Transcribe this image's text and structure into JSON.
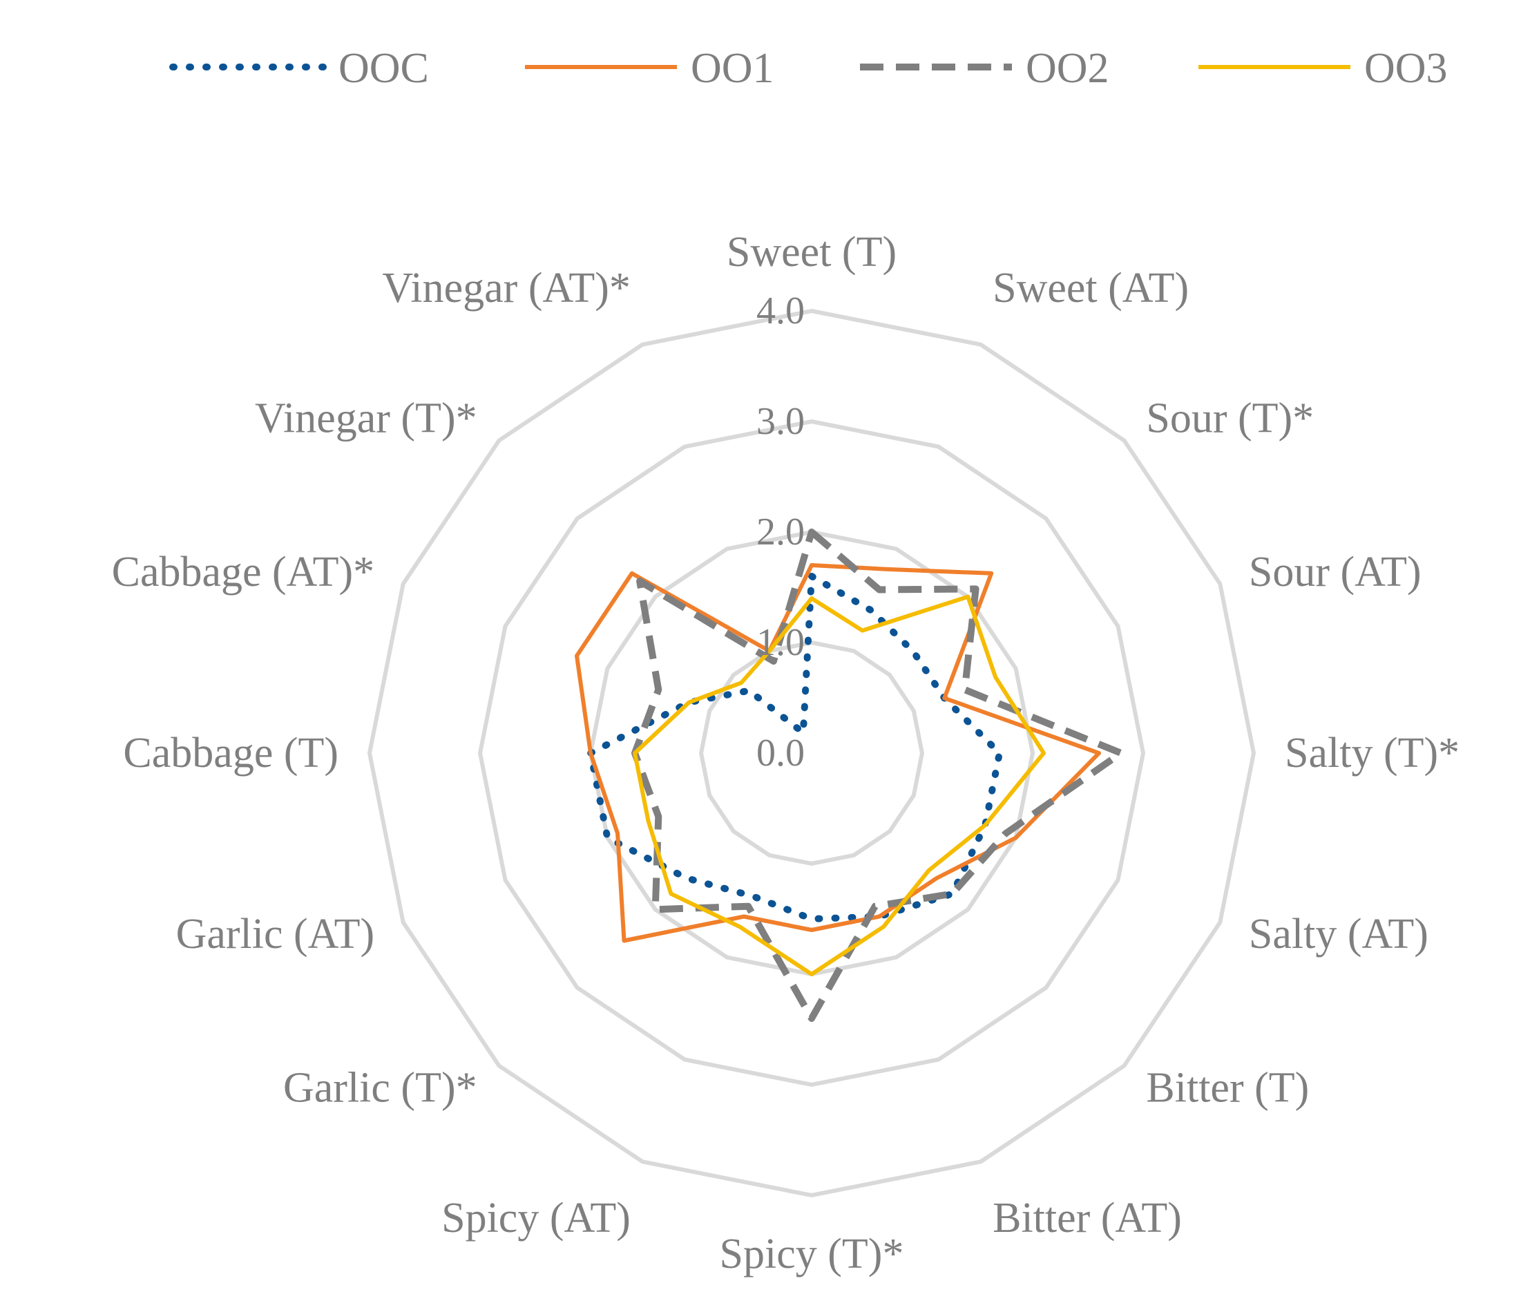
{
  "chart_data": {
    "type": "radar",
    "categories": [
      "Sweet (T)",
      "Sweet (AT)",
      "Sour (T)*",
      "Sour (AT)",
      "Salty (T)*",
      "Salty (AT)",
      "Bitter (T)",
      "Bitter (AT)",
      "Spicy (T)*",
      "Spicy (AT)",
      "Garlic (T)*",
      "Garlic (AT)",
      "Cabbage (T)",
      "Cabbage (AT)*",
      "Vinegar (T)*",
      "Vinegar (AT)*"
    ],
    "rlim": [
      0,
      4
    ],
    "ticks": [
      "0.0",
      "1.0",
      "2.0",
      "3.0",
      "4.0"
    ],
    "grid": true,
    "legend_position": "top",
    "series": [
      {
        "name": "OOC",
        "color": "#0b5394",
        "dash": "dotted",
        "values": [
          1.6,
          1.4,
          1.3,
          1.3,
          1.7,
          1.7,
          1.8,
          1.6,
          1.5,
          1.4,
          1.6,
          2.0,
          2.0,
          1.2,
          0.8,
          0.2
        ]
      },
      {
        "name": "OO1",
        "color": "#f07f2b",
        "dash": "solid",
        "values": [
          1.7,
          1.8,
          2.3,
          1.3,
          2.6,
          2.0,
          1.6,
          1.6,
          1.6,
          1.6,
          2.4,
          1.9,
          2.0,
          2.3,
          2.3,
          1.0
        ]
      },
      {
        "name": "OO2",
        "color": "#7f7f7f",
        "dash": "dashed",
        "values": [
          2.0,
          1.6,
          2.1,
          1.5,
          2.8,
          1.9,
          1.8,
          1.5,
          2.4,
          1.5,
          2.0,
          1.5,
          1.6,
          1.5,
          2.2,
          0.9
        ]
      },
      {
        "name": "OO3",
        "color": "#f5bc00",
        "dash": "solid",
        "values": [
          1.4,
          1.2,
          2.0,
          1.8,
          2.1,
          1.7,
          1.5,
          1.7,
          2.0,
          1.7,
          1.8,
          1.6,
          1.6,
          1.2,
          0.9,
          1.0
        ]
      }
    ]
  }
}
